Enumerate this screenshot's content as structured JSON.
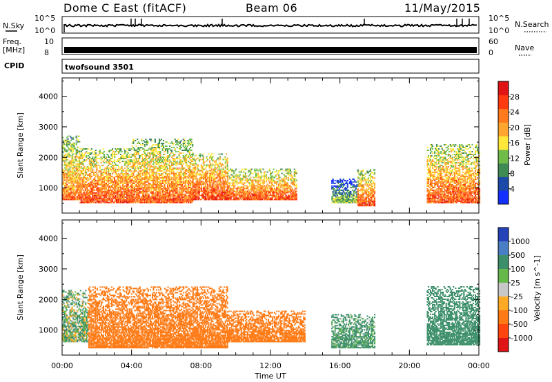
{
  "header": {
    "station": "Dome C East (fitACF)",
    "beam": "Beam 06",
    "date": "11/May/2015"
  },
  "top_panels": {
    "nsky_label": "N.Sky",
    "nsearch_label": "N.Search",
    "nsky_ticks": [
      "10^5",
      "10^0"
    ],
    "nsearch_ticks": [
      "10^5",
      "10^0"
    ],
    "freq_label_1": "Freq.",
    "freq_label_2": "[MHz]",
    "freq_ticks": [
      "10",
      "8"
    ],
    "nave_label": "Nave",
    "nave_ticks": [
      "60",
      "0"
    ],
    "cpid_label": "CPID",
    "cpid_value": "twofsound 3501"
  },
  "colors": {
    "power_scale": [
      "#1430ff",
      "#1c4aa8",
      "#3f8a55",
      "#6fbc4a",
      "#ffe83a",
      "#ffa530",
      "#ff7a1c",
      "#ff3a10",
      "#e01414"
    ],
    "velocity_scale": [
      "#2542b8",
      "#4a7ec4",
      "#3c8f6a",
      "#66b84a",
      "#c8c8c8",
      "#ffaa24",
      "#ff7a14",
      "#ff4410",
      "#e01414"
    ]
  },
  "chart_data": [
    {
      "type": "heatmap",
      "title": "",
      "xlabel": "Time UT",
      "ylabel": "Slant Range [km]",
      "xlim": [
        "00:00",
        "24:00"
      ],
      "ylim": [
        180,
        4600
      ],
      "x_ticks": [
        "00:00",
        "04:00",
        "08:00",
        "12:00",
        "16:00",
        "20:00",
        "00:00"
      ],
      "y_ticks": [
        "1000",
        "2000",
        "3000",
        "4000"
      ],
      "colorbar": {
        "label": "Power [dB]",
        "range": [
          0,
          32
        ],
        "ticks": [
          "4",
          "8",
          "12",
          "16",
          "20",
          "24",
          "28"
        ]
      },
      "echo_regions": [
        {
          "t_start": 0.0,
          "t_end": 1.0,
          "range_km": [
            600,
            2700
          ],
          "power_db": 24
        },
        {
          "t_start": 1.0,
          "t_end": 4.0,
          "range_km": [
            500,
            2300
          ],
          "power_db": 26
        },
        {
          "t_start": 4.0,
          "t_end": 7.5,
          "range_km": [
            500,
            2600
          ],
          "power_db": 25
        },
        {
          "t_start": 7.5,
          "t_end": 9.5,
          "range_km": [
            600,
            2100
          ],
          "power_db": 27
        },
        {
          "t_start": 9.5,
          "t_end": 13.5,
          "range_km": [
            600,
            1600
          ],
          "power_db": 26
        },
        {
          "t_start": 15.5,
          "t_end": 17.0,
          "range_km": [
            500,
            1300
          ],
          "power_db": 14
        },
        {
          "t_start": 17.0,
          "t_end": 18.0,
          "range_km": [
            400,
            1600
          ],
          "power_db": 26
        },
        {
          "t_start": 21.0,
          "t_end": 24.0,
          "range_km": [
            500,
            2400
          ],
          "power_db": 26
        }
      ]
    },
    {
      "type": "heatmap",
      "title": "",
      "xlabel": "Time UT",
      "ylabel": "Slant Range [km]",
      "xlim": [
        "00:00",
        "24:00"
      ],
      "ylim": [
        180,
        4600
      ],
      "x_ticks": [
        "00:00",
        "04:00",
        "08:00",
        "12:00",
        "16:00",
        "20:00",
        "00:00"
      ],
      "y_ticks": [
        "1000",
        "2000",
        "3000",
        "4000"
      ],
      "colorbar": {
        "label": "Velocity [m s^-1]",
        "ticks": [
          "1000",
          "500",
          "100",
          "25",
          "-25",
          "-100",
          "-500",
          "-1000"
        ]
      },
      "echo_regions": [
        {
          "t_start": 0.0,
          "t_end": 1.5,
          "range_km": [
            600,
            2300
          ],
          "velocity_ms": 100
        },
        {
          "t_start": 1.5,
          "t_end": 9.5,
          "range_km": [
            400,
            2400
          ],
          "velocity_ms": -300
        },
        {
          "t_start": 9.5,
          "t_end": 14.0,
          "range_km": [
            600,
            1600
          ],
          "velocity_ms": -300
        },
        {
          "t_start": 15.5,
          "t_end": 18.0,
          "range_km": [
            400,
            1500
          ],
          "velocity_ms": 200
        },
        {
          "t_start": 21.0,
          "t_end": 24.0,
          "range_km": [
            500,
            2400
          ],
          "velocity_ms": 300
        }
      ]
    }
  ]
}
